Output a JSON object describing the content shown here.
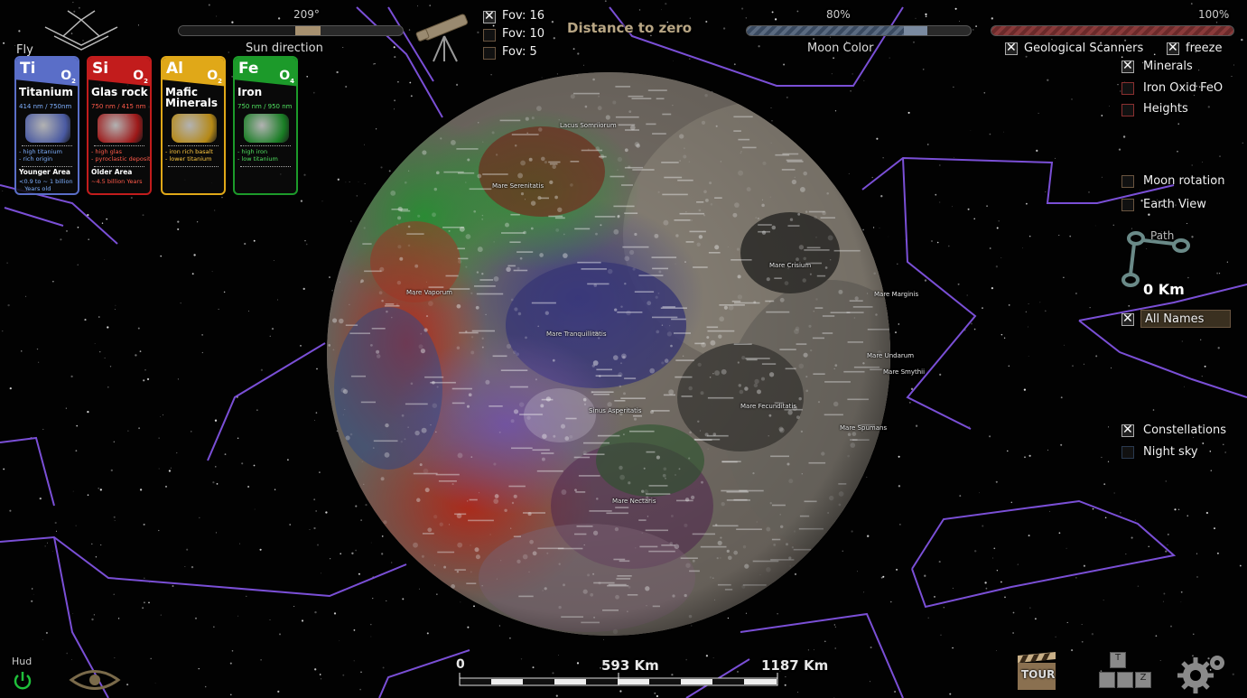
{
  "hud": {
    "fly_label": "Fly",
    "hud_label": "Hud",
    "sun_direction": {
      "value_label": "209°",
      "caption": "Sun direction",
      "value_fraction": 0.58
    },
    "fov_options": [
      {
        "label": "Fov: 16",
        "checked": true
      },
      {
        "label": "Fov: 10",
        "checked": false
      },
      {
        "label": "Fov: 5",
        "checked": false
      }
    ],
    "distance_label": "Distance to zero",
    "moon_color": {
      "value_label": "80%",
      "caption": "Moon Color",
      "value_fraction": 0.8
    },
    "geo_slider": {
      "value_label": "100%",
      "value_fraction": 1.0
    },
    "geological_scanners": {
      "label": "Geological Scanners",
      "checked": true
    },
    "freeze": {
      "label": "freeze",
      "checked": true
    },
    "scanner_layers": [
      {
        "label": "Minerals",
        "checked": true
      },
      {
        "label": "Iron Oxid FeO",
        "checked": false
      },
      {
        "label": "Heights",
        "checked": false
      }
    ],
    "moon_rotation": {
      "label": "Moon rotation",
      "checked": false
    },
    "earth_view": {
      "label": "Earth View",
      "checked": false
    },
    "path": {
      "label": "Path",
      "distance": "0 Km"
    },
    "all_names": {
      "label": "All Names",
      "checked": true
    },
    "constellations": {
      "label": "Constellations",
      "checked": true
    },
    "night_sky": {
      "label": "Night sky",
      "checked": false
    },
    "scale": {
      "zero": "0",
      "mid": "593 Km",
      "end": "1187 Km"
    },
    "tour_label": "TOUR",
    "keys": [
      "T",
      "Z"
    ]
  },
  "cards": [
    {
      "symbol": "Ti",
      "sub": "O",
      "subnum": "2",
      "name": "Titanium",
      "wavelength": "414 nm / 750nm",
      "desc": "- high titanium\n- rich origin",
      "area": "Younger Area",
      "age": "<0.9 to ~ 1 billion\n   Years old",
      "color": "#5a6ec8",
      "text_color": "#7fb0ff"
    },
    {
      "symbol": "Si",
      "sub": "O",
      "subnum": "2",
      "name": "Glas rock",
      "wavelength": "750 nm / 415 nm",
      "desc": "- high glas\n- pyroclastic deposits",
      "area": "Older Area",
      "age": "~4.5 billion Years",
      "color": "#c21c1c",
      "text_color": "#ff5a4a"
    },
    {
      "symbol": "Al",
      "sub": "O",
      "subnum": "2",
      "name": "Mafic\nMinerals",
      "wavelength": "",
      "desc": "- iron rich basalt\n- lower titanium",
      "area": "",
      "age": "",
      "color": "#e0a818",
      "text_color": "#ffc840"
    },
    {
      "symbol": "Fe",
      "sub": "O",
      "subnum": "4",
      "name": "Iron",
      "wavelength": "750 nm / 950 nm",
      "desc": "- high iron\n- low titanium",
      "area": "",
      "age": "",
      "color": "#1c9a2a",
      "text_color": "#50e060"
    }
  ],
  "moon_labels": [
    {
      "text": "Mare Serenitatis"
    },
    {
      "text": "Lacus Somniorum"
    },
    {
      "text": "Mare Crisium"
    },
    {
      "text": "Mare Vaporum"
    },
    {
      "text": "Mare Tranquillitatis"
    },
    {
      "text": "Mare Fecunditatis"
    },
    {
      "text": "Mare Nectaris"
    },
    {
      "text": "Sinus Asperitatis"
    },
    {
      "text": "Mare Smythii"
    },
    {
      "text": "Mare Marginis"
    },
    {
      "text": "Mare Spumans"
    },
    {
      "text": "Mare Undarum"
    }
  ],
  "colors": {
    "accent_bronze": "#a79170",
    "constellation": "#7a4fd6",
    "green_power": "#1fbf3a"
  }
}
